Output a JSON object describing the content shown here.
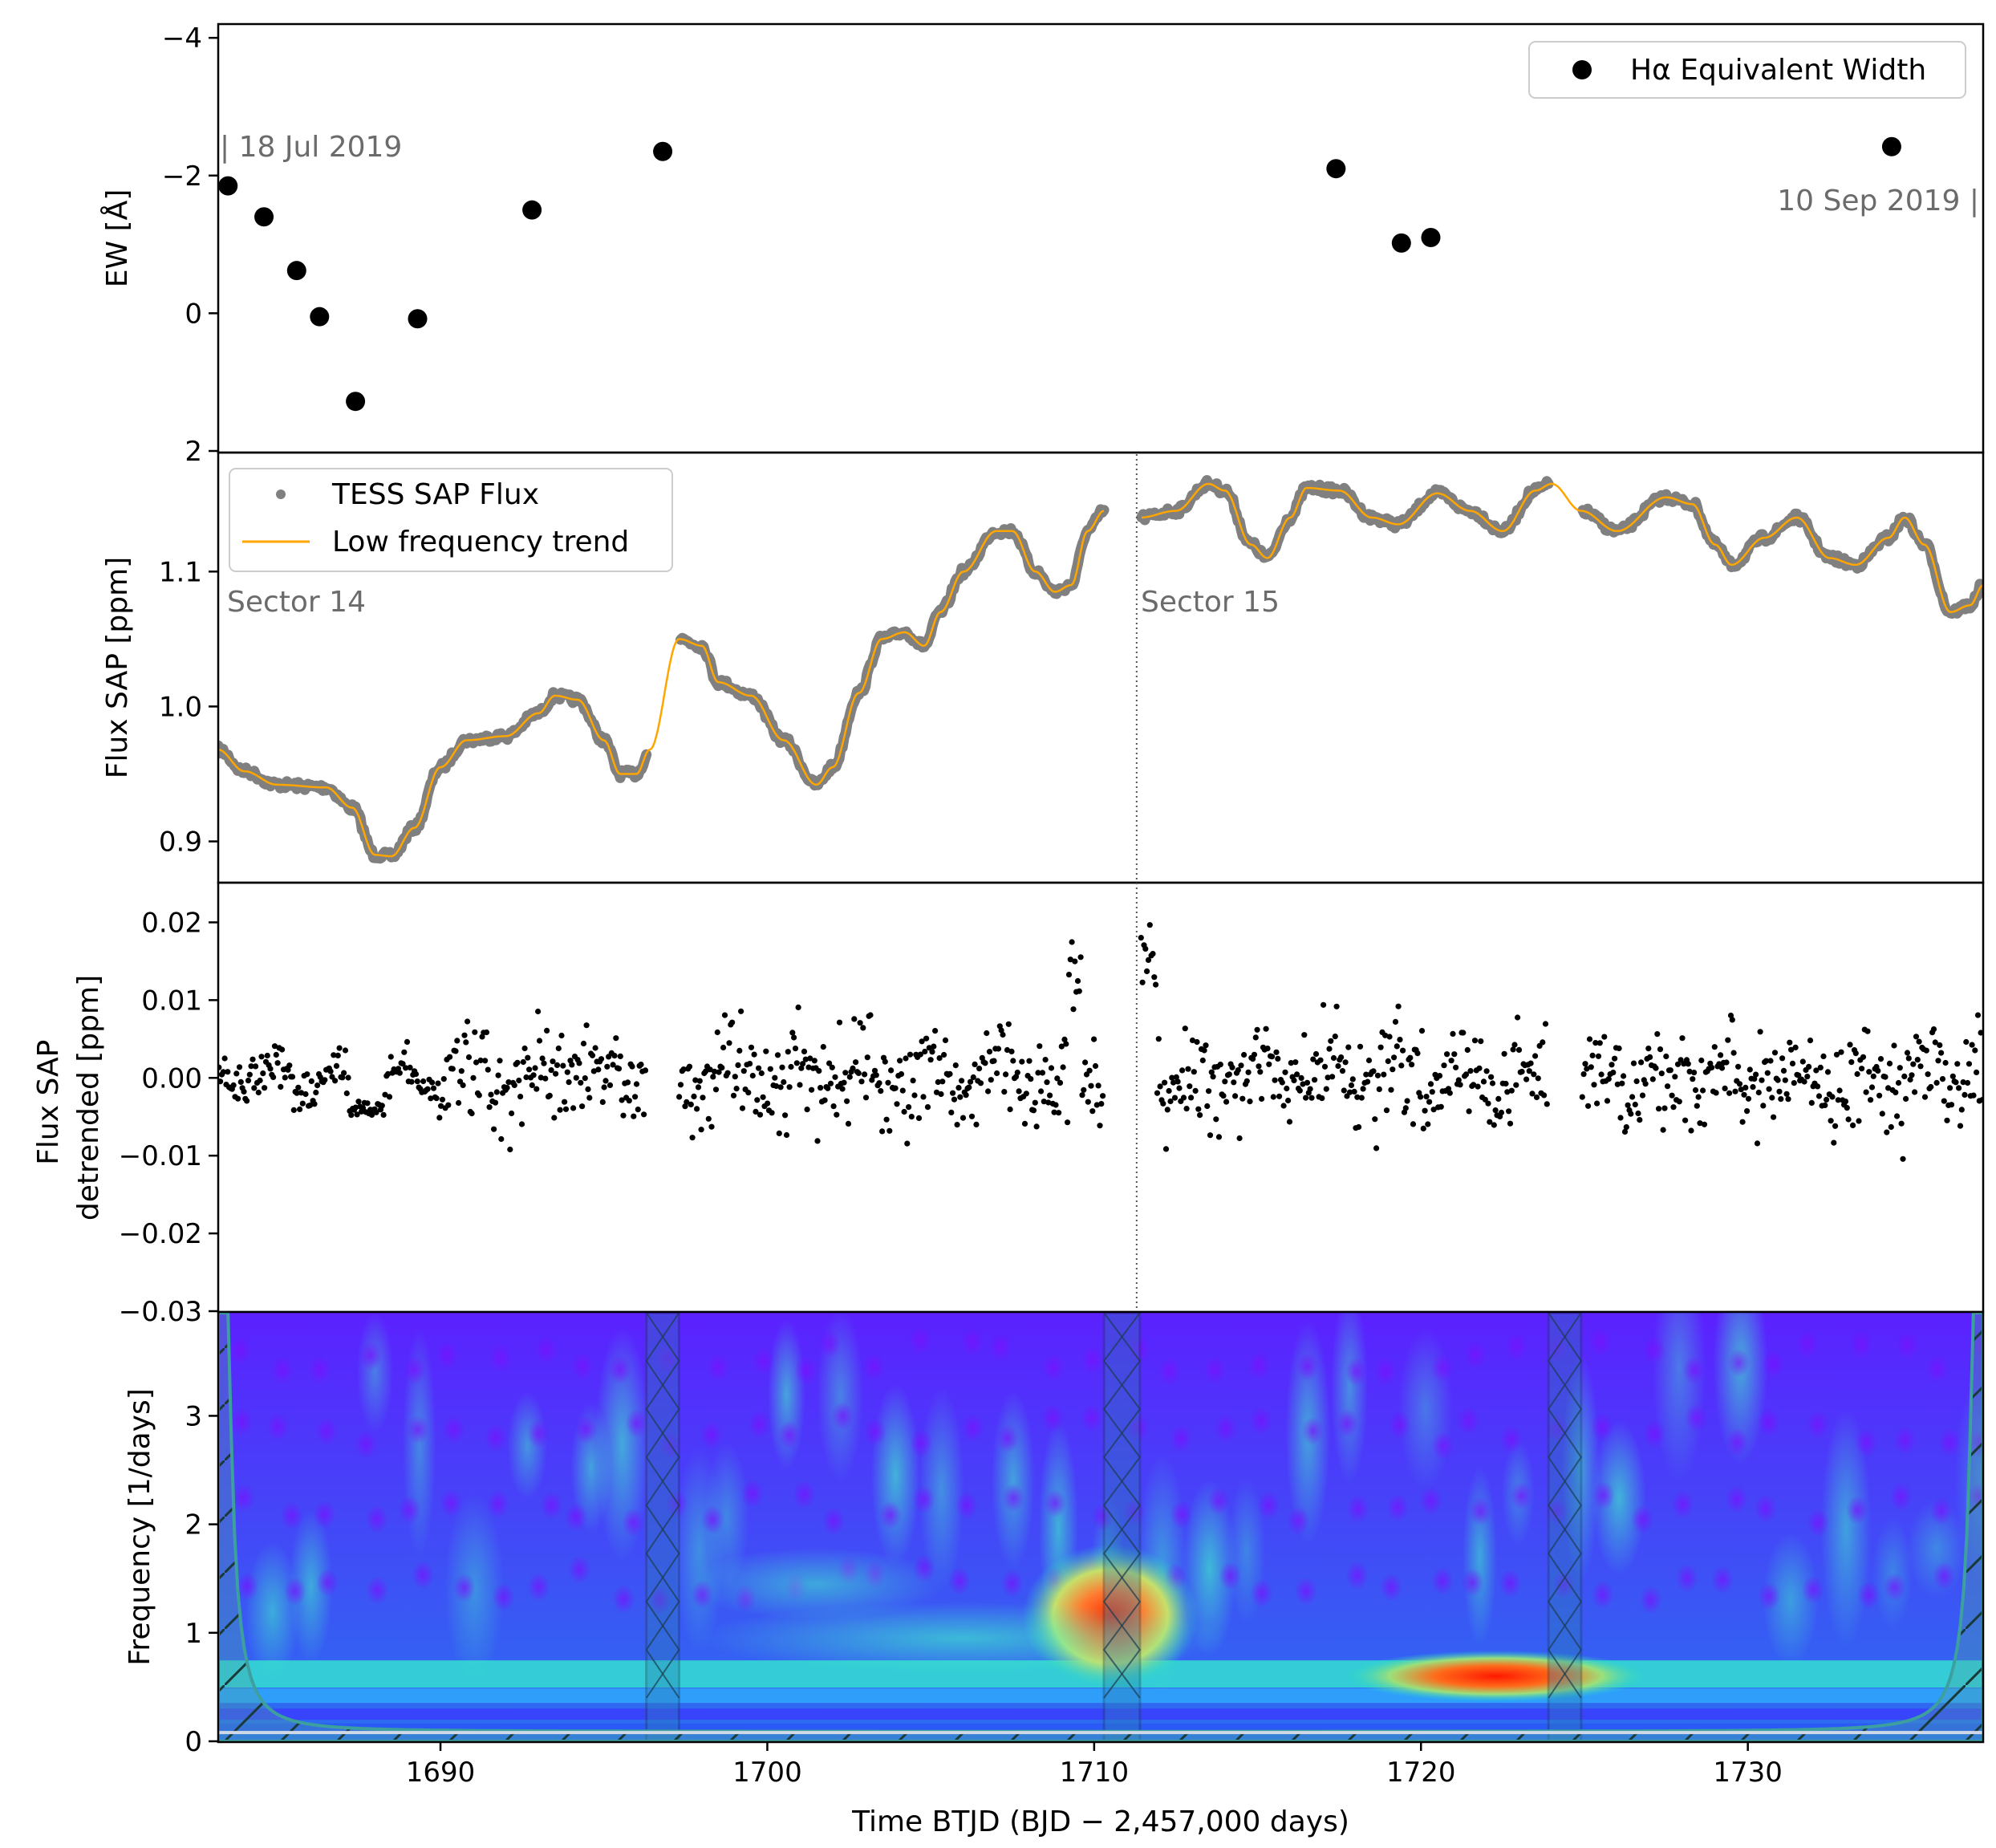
{
  "colors": {
    "ew_marker": "#000000",
    "sap_flux": "#808080",
    "trend": "#FFA500",
    "detrended": "#000000",
    "annotation": "#6b6b6b",
    "cone_fill": "#4aa3a3"
  },
  "chart_data": [
    {
      "type": "scatter",
      "panel": "ew",
      "ylabel": "EW [Å]",
      "ylim": [
        2.0,
        -4.2
      ],
      "yticks": [
        -4,
        -2,
        0,
        2
      ],
      "ytick_labels": [
        "−4",
        "−2",
        "0",
        "2"
      ],
      "xlim": [
        1683.2,
        1737.2
      ],
      "legend": {
        "placement": "top-right",
        "entries": [
          {
            "label": "Hα Equivalent Width",
            "marker": "circle"
          }
        ]
      },
      "annotations": {
        "start": "| 18 Jul 2019",
        "end": "10 Sep 2019 |"
      },
      "series": [
        {
          "name": "Hα Equivalent Width",
          "points": [
            [
              1683.5,
              -1.85
            ],
            [
              1684.6,
              -1.4
            ],
            [
              1685.6,
              -0.62
            ],
            [
              1686.3,
              0.05
            ],
            [
              1687.4,
              1.28
            ],
            [
              1689.3,
              0.08
            ],
            [
              1692.8,
              -1.5
            ],
            [
              1696.8,
              -2.35
            ],
            [
              1717.4,
              -2.1
            ],
            [
              1719.4,
              -1.02
            ],
            [
              1720.3,
              -1.1
            ],
            [
              1734.4,
              -2.42
            ]
          ]
        }
      ]
    },
    {
      "type": "line",
      "panel": "sap",
      "ylabel": "Flux SAP [ppm]",
      "ylim": [
        0.87,
        1.187
      ],
      "yticks": [
        0.9,
        1.0,
        1.1
      ],
      "ytick_labels": [
        "0.9",
        "1.0",
        "1.1"
      ],
      "xlim": [
        1683.2,
        1737.2
      ],
      "legend": {
        "placement": "top-left",
        "entries": [
          {
            "label": "TESS SAP Flux",
            "marker": "dot"
          },
          {
            "label": "Low frequency trend",
            "marker": "line"
          }
        ]
      },
      "annotations": {
        "sector_a": "Sector 14",
        "sector_b": "Sector 15"
      },
      "sector_boundary": 1711.3,
      "gaps": [
        [
          1696.3,
          1697.3
        ],
        [
          1710.3,
          1711.4
        ],
        [
          1723.9,
          1724.9
        ]
      ],
      "series": [
        {
          "name": "Low frequency trend",
          "points": [
            [
              1683.2,
              0.968
            ],
            [
              1684.0,
              0.952
            ],
            [
              1685.0,
              0.942
            ],
            [
              1686.5,
              0.94
            ],
            [
              1687.3,
              0.925
            ],
            [
              1688.0,
              0.89
            ],
            [
              1688.5,
              0.889
            ],
            [
              1689.2,
              0.91
            ],
            [
              1690.0,
              0.955
            ],
            [
              1690.8,
              0.975
            ],
            [
              1692.0,
              0.978
            ],
            [
              1693.0,
              0.995
            ],
            [
              1693.5,
              1.008
            ],
            [
              1694.2,
              1.005
            ],
            [
              1695.0,
              0.975
            ],
            [
              1695.5,
              0.95
            ],
            [
              1696.0,
              0.95
            ],
            [
              1696.4,
              0.968
            ],
            [
              1697.3,
              1.05
            ],
            [
              1698.0,
              1.045
            ],
            [
              1698.5,
              1.018
            ],
            [
              1699.5,
              1.008
            ],
            [
              1700.5,
              0.975
            ],
            [
              1701.5,
              0.942
            ],
            [
              1702.0,
              0.955
            ],
            [
              1702.8,
              1.01
            ],
            [
              1703.5,
              1.05
            ],
            [
              1704.2,
              1.055
            ],
            [
              1704.8,
              1.045
            ],
            [
              1705.3,
              1.07
            ],
            [
              1706.0,
              1.1
            ],
            [
              1707.0,
              1.13
            ],
            [
              1707.5,
              1.13
            ],
            [
              1708.2,
              1.1
            ],
            [
              1708.8,
              1.085
            ],
            [
              1709.3,
              1.09
            ],
            [
              1709.8,
              1.13
            ],
            [
              1710.3,
              1.145
            ],
            [
              1711.4,
              1.14
            ],
            [
              1712.5,
              1.145
            ],
            [
              1713.5,
              1.165
            ],
            [
              1714.0,
              1.16
            ],
            [
              1714.8,
              1.12
            ],
            [
              1715.3,
              1.11
            ],
            [
              1716.0,
              1.14
            ],
            [
              1716.5,
              1.162
            ],
            [
              1717.5,
              1.16
            ],
            [
              1718.5,
              1.14
            ],
            [
              1719.3,
              1.135
            ],
            [
              1720.5,
              1.158
            ],
            [
              1721.5,
              1.145
            ],
            [
              1722.5,
              1.13
            ],
            [
              1723.5,
              1.16
            ],
            [
              1724.0,
              1.165
            ],
            [
              1724.9,
              1.145
            ],
            [
              1726.0,
              1.13
            ],
            [
              1727.5,
              1.155
            ],
            [
              1728.3,
              1.15
            ],
            [
              1729.0,
              1.12
            ],
            [
              1729.5,
              1.105
            ],
            [
              1730.5,
              1.125
            ],
            [
              1731.5,
              1.14
            ],
            [
              1732.5,
              1.11
            ],
            [
              1733.3,
              1.105
            ],
            [
              1734.3,
              1.125
            ],
            [
              1734.8,
              1.14
            ],
            [
              1735.4,
              1.12
            ],
            [
              1736.2,
              1.07
            ],
            [
              1736.8,
              1.075
            ],
            [
              1737.2,
              1.09
            ]
          ]
        }
      ]
    },
    {
      "type": "scatter",
      "panel": "detrended",
      "ylabel_lines": [
        "Flux SAP",
        "detrended [ppm]"
      ],
      "ylim": [
        -0.03,
        0.025
      ],
      "yticks": [
        -0.03,
        -0.02,
        -0.01,
        0.0,
        0.01,
        0.02
      ],
      "ytick_labels": [
        "−0.03",
        "−0.02",
        "−0.01",
        "0.00",
        "0.01",
        "0.02"
      ],
      "xlim": [
        1683.2,
        1737.2
      ],
      "gaps": [
        [
          1696.3,
          1697.3
        ],
        [
          1710.3,
          1711.4
        ],
        [
          1723.9,
          1724.9
        ]
      ],
      "scatter_std": 0.0045,
      "range": [
        -0.017,
        0.023
      ]
    },
    {
      "type": "heatmap",
      "panel": "wavelet",
      "ylabel": "Frequency [1/days]",
      "xlabel": "Time BTJD (BJD − 2,457,000 days)",
      "ylim": [
        0,
        3.95
      ],
      "yticks": [
        0,
        1,
        2,
        3
      ],
      "ytick_labels": [
        "0",
        "1",
        "2",
        "3"
      ],
      "xlim": [
        1683.2,
        1737.2
      ],
      "xticks": [
        1690,
        1700,
        1710,
        1720,
        1730
      ],
      "xtick_labels": [
        "1690",
        "1700",
        "1710",
        "1720",
        "1730"
      ],
      "gap_bands": [
        [
          1696.3,
          1697.3
        ],
        [
          1710.3,
          1711.4
        ],
        [
          1723.9,
          1724.9
        ]
      ],
      "hotspots": [
        {
          "time": 1710.5,
          "frequency": 1.15,
          "strength": "high"
        },
        {
          "time": 1722.3,
          "frequency": 0.6,
          "strength": "high"
        }
      ]
    }
  ]
}
